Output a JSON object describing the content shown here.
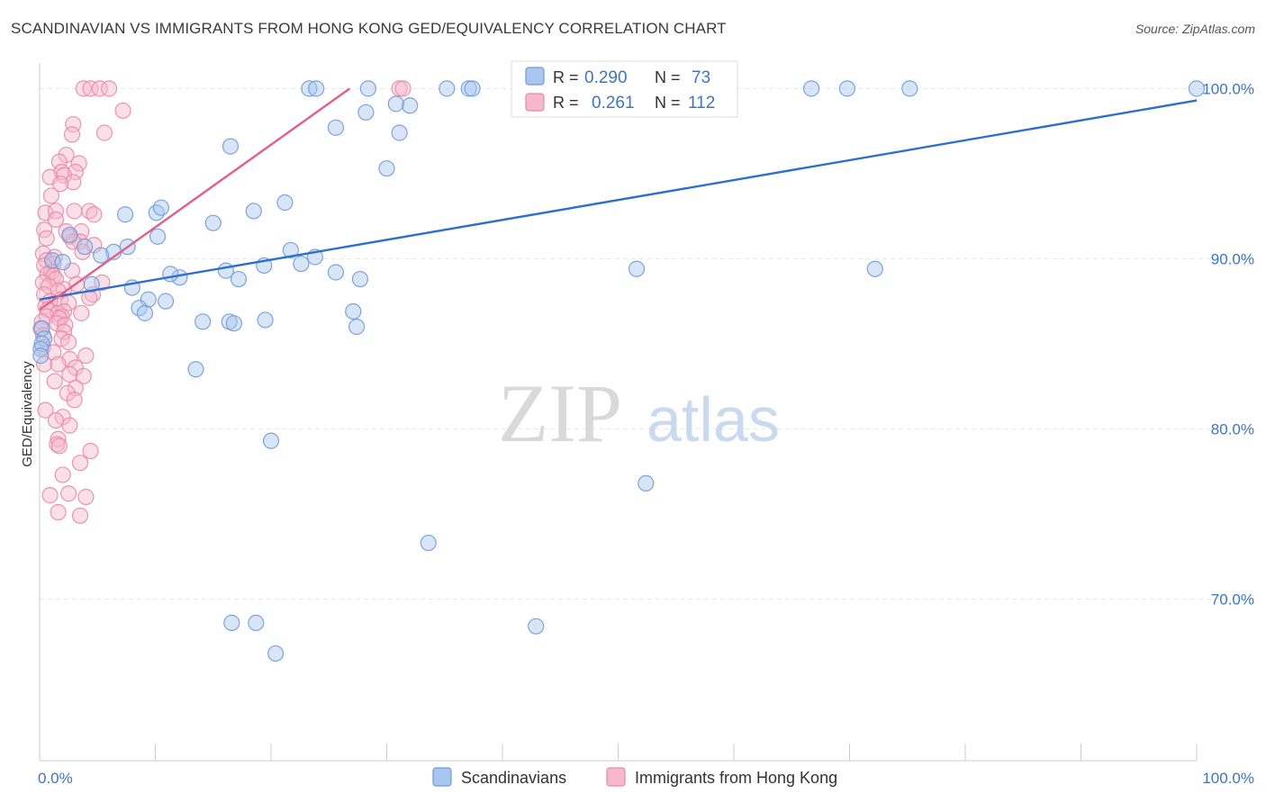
{
  "title": "SCANDINAVIAN VS IMMIGRANTS FROM HONG KONG GED/EQUIVALENCY CORRELATION CHART",
  "source": "Source: ZipAtlas.com",
  "watermark": {
    "zip": "ZIP",
    "atlas": "atlas"
  },
  "legend_top": [
    {
      "r_label": "R =",
      "r_value": "0.290",
      "n_label": "N =",
      "n_value": "73"
    },
    {
      "r_label": "R =",
      "r_value": "0.261",
      "n_label": "N =",
      "n_value": "112"
    }
  ],
  "legend_bottom": [
    "Scandinavians",
    "Immigrants from Hong Kong"
  ],
  "colors": {
    "blue_fill": "#a9c6ee",
    "blue_stroke": "#6f9bd8",
    "blue_line": "#2f6fcc",
    "pink_fill": "#f6b9cb",
    "pink_stroke": "#e889a6",
    "pink_line": "#e0608a",
    "grid": "#e6e6e6",
    "tick_text": "#3b75c4"
  },
  "chart_data": {
    "type": "scatter",
    "title": "SCANDINAVIAN VS IMMIGRANTS FROM HONG KONG GED/EQUIVALENCY CORRELATION CHART",
    "xlabel": "",
    "ylabel": "GED/Equivalency",
    "xlim": [
      0,
      100
    ],
    "ylim": [
      60.5,
      101.5
    ],
    "x_tick_labels": [
      {
        "value": 0,
        "label": "0.0%"
      },
      {
        "value": 100,
        "label": "100.0%"
      }
    ],
    "y_tick_labels": [
      {
        "value": 100,
        "label": "100.0%"
      },
      {
        "value": 90,
        "label": "90.0%"
      },
      {
        "value": 80,
        "label": "80.0%"
      },
      {
        "value": 70,
        "label": "70.0%"
      }
    ],
    "series": [
      {
        "name": "Scandinavians",
        "color": "#a9c6ee",
        "r": 0.29,
        "n": 73,
        "trend": {
          "x": [
            0,
            100
          ],
          "y": [
            87.6,
            99.3
          ]
        },
        "points": [
          [
            23.3,
            100
          ],
          [
            23.9,
            100
          ],
          [
            28.4,
            100
          ],
          [
            35.2,
            100
          ],
          [
            37.1,
            100
          ],
          [
            37.4,
            100
          ],
          [
            42.9,
            100
          ],
          [
            46.4,
            100
          ],
          [
            47.6,
            100
          ],
          [
            66.7,
            100
          ],
          [
            69.8,
            100
          ],
          [
            75.2,
            100
          ],
          [
            100,
            100
          ],
          [
            28.2,
            98.6
          ],
          [
            32.0,
            99.0
          ],
          [
            30.8,
            99.1
          ],
          [
            25.6,
            97.7
          ],
          [
            31.1,
            97.4
          ],
          [
            16.5,
            96.6
          ],
          [
            30.0,
            95.3
          ],
          [
            21.2,
            93.3
          ],
          [
            10.1,
            92.7
          ],
          [
            10.5,
            93.0
          ],
          [
            7.4,
            92.6
          ],
          [
            18.5,
            92.8
          ],
          [
            15.0,
            92.1
          ],
          [
            2.6,
            91.4
          ],
          [
            10.2,
            91.3
          ],
          [
            7.6,
            90.7
          ],
          [
            3.9,
            90.7
          ],
          [
            6.4,
            90.4
          ],
          [
            5.3,
            90.2
          ],
          [
            1.1,
            89.9
          ],
          [
            2.0,
            89.8
          ],
          [
            21.7,
            90.5
          ],
          [
            23.8,
            90.1
          ],
          [
            22.6,
            89.7
          ],
          [
            19.4,
            89.6
          ],
          [
            16.1,
            89.3
          ],
          [
            12.1,
            88.9
          ],
          [
            11.3,
            89.1
          ],
          [
            17.2,
            88.8
          ],
          [
            25.6,
            89.2
          ],
          [
            27.7,
            88.8
          ],
          [
            51.6,
            89.4
          ],
          [
            72.2,
            89.4
          ],
          [
            4.5,
            88.5
          ],
          [
            8.0,
            88.3
          ],
          [
            9.4,
            87.6
          ],
          [
            10.9,
            87.5
          ],
          [
            8.6,
            87.1
          ],
          [
            9.1,
            86.8
          ],
          [
            27.1,
            86.9
          ],
          [
            14.1,
            86.3
          ],
          [
            16.4,
            86.3
          ],
          [
            16.8,
            86.2
          ],
          [
            19.5,
            86.4
          ],
          [
            27.4,
            86.0
          ],
          [
            0.2,
            85.9
          ],
          [
            0.4,
            85.3
          ],
          [
            0.2,
            85.0
          ],
          [
            0.1,
            84.7
          ],
          [
            0.1,
            84.3
          ],
          [
            13.5,
            83.5
          ],
          [
            20.0,
            79.3
          ],
          [
            52.4,
            76.8
          ],
          [
            33.6,
            73.3
          ],
          [
            18.7,
            68.6
          ],
          [
            16.6,
            68.6
          ],
          [
            42.9,
            68.4
          ],
          [
            20.4,
            66.8
          ]
        ]
      },
      {
        "name": "Immigrants from Hong Kong",
        "color": "#f6b9cb",
        "r": 0.261,
        "n": 112,
        "trend": {
          "x": [
            0,
            26.8
          ],
          "y": [
            87.0,
            100.0
          ]
        },
        "points": [
          [
            3.8,
            100
          ],
          [
            4.4,
            100
          ],
          [
            5.2,
            100
          ],
          [
            6.0,
            100
          ],
          [
            31.1,
            100
          ],
          [
            31.4,
            100
          ],
          [
            7.2,
            98.7
          ],
          [
            2.9,
            97.9
          ],
          [
            2.8,
            97.3
          ],
          [
            5.6,
            97.4
          ],
          [
            2.3,
            96.1
          ],
          [
            1.7,
            95.7
          ],
          [
            3.4,
            95.6
          ],
          [
            1.9,
            95.1
          ],
          [
            3.1,
            95.1
          ],
          [
            2.1,
            94.9
          ],
          [
            0.9,
            94.8
          ],
          [
            2.9,
            94.5
          ],
          [
            1.8,
            94.4
          ],
          [
            1.0,
            93.7
          ],
          [
            0.5,
            92.7
          ],
          [
            1.4,
            92.8
          ],
          [
            3.0,
            92.8
          ],
          [
            4.3,
            92.8
          ],
          [
            4.7,
            92.6
          ],
          [
            1.4,
            92.3
          ],
          [
            0.4,
            91.7
          ],
          [
            2.3,
            91.6
          ],
          [
            3.6,
            91.6
          ],
          [
            2.6,
            91.3
          ],
          [
            0.6,
            91.2
          ],
          [
            3.5,
            91.0
          ],
          [
            2.9,
            91.0
          ],
          [
            4.7,
            90.8
          ],
          [
            3.7,
            90.4
          ],
          [
            0.3,
            90.3
          ],
          [
            1.3,
            90.1
          ],
          [
            0.6,
            89.9
          ],
          [
            1.2,
            89.7
          ],
          [
            0.4,
            89.6
          ],
          [
            2.8,
            89.3
          ],
          [
            1.0,
            89.2
          ],
          [
            0.7,
            89.1
          ],
          [
            1.2,
            89.0
          ],
          [
            1.4,
            88.8
          ],
          [
            0.3,
            88.6
          ],
          [
            3.2,
            88.5
          ],
          [
            5.4,
            88.6
          ],
          [
            0.8,
            88.4
          ],
          [
            2.1,
            88.2
          ],
          [
            1.6,
            88.1
          ],
          [
            0.4,
            87.9
          ],
          [
            4.6,
            87.9
          ],
          [
            4.3,
            87.7
          ],
          [
            1.8,
            87.6
          ],
          [
            0.9,
            87.5
          ],
          [
            2.5,
            87.4
          ],
          [
            0.5,
            87.2
          ],
          [
            0.7,
            87.0
          ],
          [
            1.6,
            86.8
          ],
          [
            2.1,
            86.9
          ],
          [
            3.6,
            86.8
          ],
          [
            0.6,
            86.6
          ],
          [
            1.9,
            86.6
          ],
          [
            1.7,
            86.5
          ],
          [
            0.2,
            86.3
          ],
          [
            1.5,
            86.2
          ],
          [
            2.2,
            86.1
          ],
          [
            0.1,
            85.9
          ],
          [
            2.1,
            85.7
          ],
          [
            0.3,
            85.5
          ],
          [
            1.9,
            85.3
          ],
          [
            2.5,
            85.1
          ],
          [
            0.3,
            84.8
          ],
          [
            1.2,
            84.5
          ],
          [
            4.0,
            84.3
          ],
          [
            2.6,
            84.1
          ],
          [
            0.4,
            83.8
          ],
          [
            1.6,
            83.8
          ],
          [
            3.1,
            83.6
          ],
          [
            2.6,
            83.2
          ],
          [
            3.8,
            83.1
          ],
          [
            1.3,
            82.8
          ],
          [
            3.1,
            82.4
          ],
          [
            2.4,
            82.1
          ],
          [
            3.0,
            81.7
          ],
          [
            0.5,
            81.1
          ],
          [
            2.0,
            80.7
          ],
          [
            1.4,
            80.5
          ],
          [
            2.6,
            80.2
          ],
          [
            1.6,
            79.4
          ],
          [
            1.5,
            79.1
          ],
          [
            1.7,
            79.0
          ],
          [
            4.4,
            78.7
          ],
          [
            3.5,
            78.0
          ],
          [
            2.0,
            77.3
          ],
          [
            0.9,
            76.1
          ],
          [
            2.5,
            76.2
          ],
          [
            4.0,
            76.0
          ],
          [
            1.6,
            75.1
          ],
          [
            3.5,
            74.9
          ]
        ]
      }
    ]
  }
}
